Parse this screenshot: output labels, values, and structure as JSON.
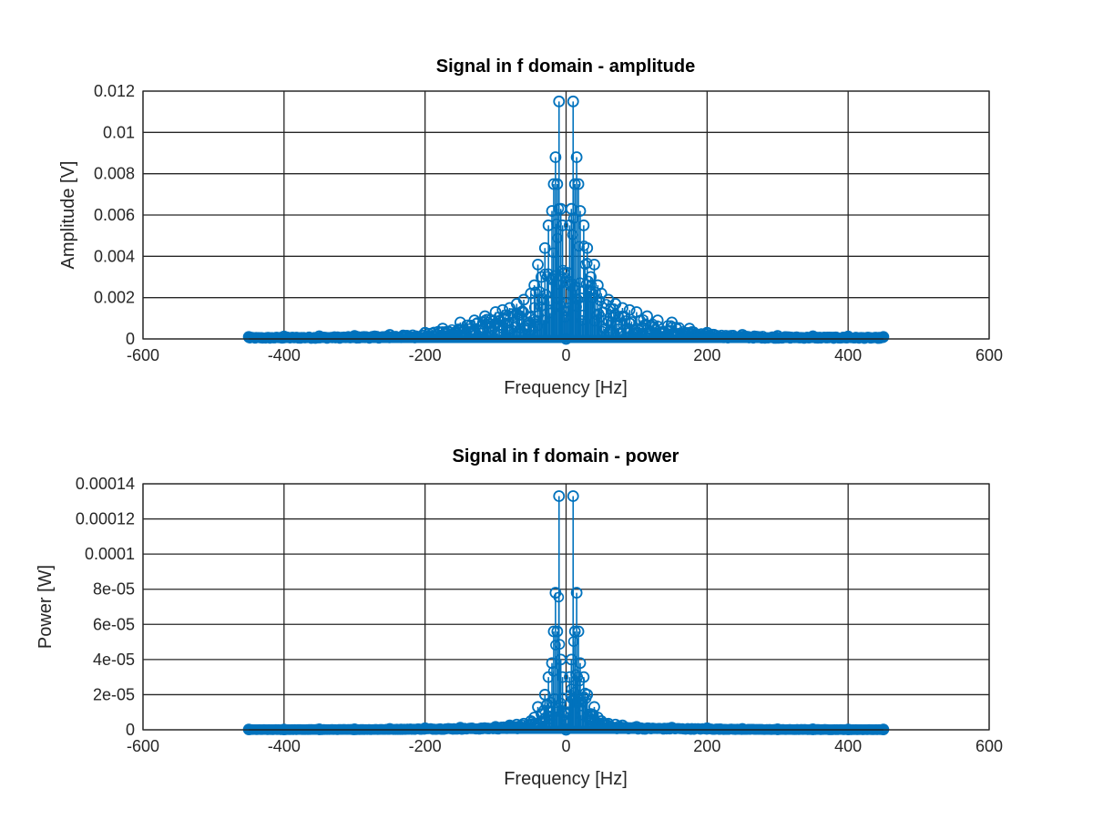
{
  "colors": {
    "series": "#0072BD",
    "grid": "#262626",
    "axis": "#262626",
    "background": "#ffffff"
  },
  "chart_data": [
    {
      "type": "stem",
      "marker": "circle",
      "title": "Signal in f domain - amplitude",
      "xlabel": "Frequency [Hz]",
      "ylabel": "Amplitude [V]",
      "xlim": [
        -600,
        600
      ],
      "ylim": [
        0,
        0.012
      ],
      "xticks": [
        -600,
        -400,
        -200,
        0,
        200,
        400,
        600
      ],
      "xtick_labels": [
        "-600",
        "-400",
        "-200",
        "0",
        "200",
        "400",
        "600"
      ],
      "yticks": [
        0,
        0.002,
        0.004,
        0.006,
        0.008,
        0.01,
        0.012
      ],
      "ytick_labels": [
        "0",
        "0.002",
        "0.004",
        "0.006",
        "0.008",
        "0.01",
        "0.012"
      ],
      "grid": true,
      "x_range_of_data": [
        -450,
        450
      ],
      "series": [
        {
          "x": [
            -450,
            -400,
            -350,
            -300,
            -250,
            -200,
            -175,
            -150,
            -130,
            -115,
            -100,
            -90,
            -80,
            -70,
            -60,
            -50,
            -45,
            -40,
            -35,
            -30,
            -25,
            -20,
            -17.5,
            -15,
            -12.5,
            -10,
            -7.5,
            -5,
            -2.5,
            0,
            2.5,
            5,
            7.5,
            10,
            12.5,
            15,
            17.5,
            20,
            25,
            30,
            35,
            40,
            45,
            50,
            60,
            70,
            80,
            90,
            100,
            115,
            130,
            150,
            175,
            200,
            250,
            300,
            350,
            400,
            450
          ],
          "y": [
            0.0001,
            0.00012,
            0.00013,
            0.00015,
            0.0002,
            0.0003,
            0.0005,
            0.0008,
            0.0009,
            0.0011,
            0.0013,
            0.0014,
            0.0015,
            0.0017,
            0.0019,
            0.0022,
            0.0026,
            0.0036,
            0.003,
            0.0044,
            0.0055,
            0.0062,
            0.0075,
            0.0088,
            0.0075,
            0.0115,
            0.0063,
            0.0055,
            0.0032,
            0.0,
            0.0032,
            0.0055,
            0.0063,
            0.0115,
            0.0075,
            0.0088,
            0.0075,
            0.0062,
            0.0055,
            0.0044,
            0.003,
            0.0036,
            0.0026,
            0.0022,
            0.0019,
            0.0017,
            0.0015,
            0.0014,
            0.0013,
            0.0011,
            0.0009,
            0.0008,
            0.0005,
            0.0003,
            0.0002,
            0.00015,
            0.00013,
            0.00012,
            0.0001
          ]
        }
      ]
    },
    {
      "type": "stem",
      "marker": "circle",
      "title": "Signal in f domain - power",
      "xlabel": "Frequency [Hz]",
      "ylabel": "Power [W]",
      "xlim": [
        -600,
        600
      ],
      "ylim": [
        0,
        0.00014
      ],
      "xticks": [
        -600,
        -400,
        -200,
        0,
        200,
        400,
        600
      ],
      "xtick_labels": [
        "-600",
        "-400",
        "-200",
        "0",
        "200",
        "400",
        "600"
      ],
      "yticks": [
        0,
        2e-05,
        4e-05,
        6e-05,
        8e-05,
        0.0001,
        0.00012,
        0.00014
      ],
      "ytick_labels": [
        "0",
        "2e-05",
        "4e-05",
        "6e-05",
        "8e-05",
        "0.0001",
        "0.00012",
        "0.00014"
      ],
      "grid": true,
      "x_range_of_data": [
        -450,
        450
      ],
      "series": [
        {
          "x": [
            -450,
            -400,
            -350,
            -300,
            -250,
            -200,
            -150,
            -100,
            -80,
            -70,
            -60,
            -50,
            -45,
            -40,
            -35,
            -30,
            -25,
            -20,
            -17.5,
            -15,
            -12.5,
            -10,
            -7.5,
            -5,
            -2.5,
            0,
            2.5,
            5,
            7.5,
            10,
            12.5,
            15,
            17.5,
            20,
            25,
            30,
            35,
            40,
            45,
            50,
            60,
            70,
            80,
            100,
            150,
            200,
            250,
            300,
            350,
            400,
            450
          ],
          "y": [
            2e-07,
            2e-07,
            3e-07,
            3e-07,
            5e-07,
            9e-07,
            1.2e-06,
            1.7e-06,
            2.5e-06,
            3e-06,
            3.5e-06,
            5e-06,
            7e-06,
            1.3e-05,
            9e-06,
            2e-05,
            3e-05,
            3.8e-05,
            5.6e-05,
            7.8e-05,
            5.6e-05,
            0.000133,
            4e-05,
            3e-05,
            1e-05,
            0.0,
            1e-05,
            3e-05,
            4e-05,
            0.000133,
            5.6e-05,
            7.8e-05,
            5.6e-05,
            3.8e-05,
            3e-05,
            2e-05,
            9e-06,
            1.3e-05,
            7e-06,
            5e-06,
            3.5e-06,
            3e-06,
            2.5e-06,
            1.7e-06,
            1.2e-06,
            9e-07,
            5e-07,
            3e-07,
            3e-07,
            2e-07,
            2e-07
          ]
        }
      ]
    }
  ]
}
